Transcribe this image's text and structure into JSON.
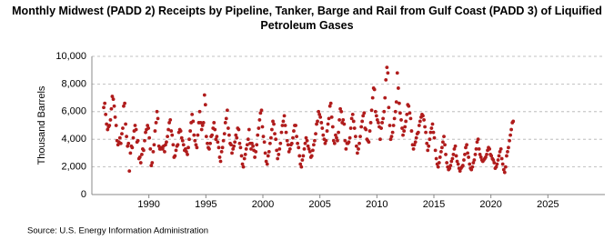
{
  "chart_data": {
    "type": "scatter",
    "title": "Monthly Midwest (PADD 2) Receipts by Pipeline, Tanker, Barge and Rail from Gulf Coast (PADD 3) of Liquified Petroleum Gases",
    "y_label": "Thousand Barrels",
    "source": "Source: U.S. Energy Information Administration",
    "color": "#b01c1c",
    "grid": true,
    "xlim": [
      1985,
      2030
    ],
    "xticks": [
      1990,
      1995,
      2000,
      2005,
      2010,
      2015,
      2020,
      2025
    ],
    "ylim": [
      0,
      10000
    ],
    "yticks": [
      0,
      {
        "value": 2000,
        "label": "2,000"
      },
      {
        "value": 4000,
        "label": "4,000"
      },
      {
        "value": 6000,
        "label": "6,000"
      },
      {
        "value": 8000,
        "label": "8,000"
      },
      {
        "value": 10000,
        "label": "10,000"
      }
    ],
    "x": [
      1986.04,
      1986.13,
      1986.21,
      1986.29,
      1986.38,
      1986.46,
      1986.54,
      1986.63,
      1986.71,
      1986.79,
      1986.88,
      1986.96,
      1987.04,
      1987.13,
      1987.21,
      1987.29,
      1987.38,
      1987.46,
      1987.54,
      1987.63,
      1987.71,
      1987.79,
      1987.88,
      1987.96,
      1988.04,
      1988.13,
      1988.21,
      1988.29,
      1988.38,
      1988.46,
      1988.54,
      1988.63,
      1988.71,
      1988.79,
      1988.88,
      1988.96,
      1989.04,
      1989.13,
      1989.21,
      1989.29,
      1989.38,
      1989.46,
      1989.54,
      1989.63,
      1989.71,
      1989.79,
      1989.88,
      1989.96,
      1990.04,
      1990.13,
      1990.21,
      1990.29,
      1990.38,
      1990.46,
      1990.54,
      1990.63,
      1990.71,
      1990.79,
      1990.88,
      1990.96,
      1991.04,
      1991.13,
      1991.21,
      1991.29,
      1991.38,
      1991.46,
      1991.54,
      1991.63,
      1991.71,
      1991.79,
      1991.88,
      1991.96,
      1992.04,
      1992.13,
      1992.21,
      1992.29,
      1992.38,
      1992.46,
      1992.54,
      1992.63,
      1992.71,
      1992.79,
      1992.88,
      1992.96,
      1993.04,
      1993.13,
      1993.21,
      1993.29,
      1993.38,
      1993.46,
      1993.54,
      1993.63,
      1993.71,
      1993.79,
      1993.88,
      1993.96,
      1994.04,
      1994.13,
      1994.21,
      1994.29,
      1994.38,
      1994.46,
      1994.54,
      1994.63,
      1994.71,
      1994.79,
      1994.88,
      1994.96,
      1995.04,
      1995.13,
      1995.21,
      1995.29,
      1995.38,
      1995.46,
      1995.54,
      1995.63,
      1995.71,
      1995.79,
      1995.88,
      1995.96,
      1996.04,
      1996.13,
      1996.21,
      1996.29,
      1996.38,
      1996.46,
      1996.54,
      1996.63,
      1996.71,
      1996.79,
      1996.88,
      1996.96,
      1997.04,
      1997.13,
      1997.21,
      1997.29,
      1997.38,
      1997.46,
      1997.54,
      1997.63,
      1997.71,
      1997.79,
      1997.88,
      1997.96,
      1998.04,
      1998.13,
      1998.21,
      1998.29,
      1998.38,
      1998.46,
      1998.54,
      1998.63,
      1998.71,
      1998.79,
      1998.88,
      1998.96,
      1999.04,
      1999.13,
      1999.21,
      1999.29,
      1999.38,
      1999.46,
      1999.54,
      1999.63,
      1999.71,
      1999.79,
      1999.88,
      1999.96,
      2000.04,
      2000.13,
      2000.21,
      2000.29,
      2000.38,
      2000.46,
      2000.54,
      2000.63,
      2000.71,
      2000.79,
      2000.88,
      2000.96,
      2001.04,
      2001.13,
      2001.21,
      2001.29,
      2001.38,
      2001.46,
      2001.54,
      2001.63,
      2001.71,
      2001.79,
      2001.88,
      2001.96,
      2002.04,
      2002.13,
      2002.21,
      2002.29,
      2002.38,
      2002.46,
      2002.54,
      2002.63,
      2002.71,
      2002.79,
      2002.88,
      2002.96,
      2003.04,
      2003.13,
      2003.21,
      2003.29,
      2003.38,
      2003.46,
      2003.54,
      2003.63,
      2003.71,
      2003.79,
      2003.88,
      2003.96,
      2004.04,
      2004.13,
      2004.21,
      2004.29,
      2004.38,
      2004.46,
      2004.54,
      2004.63,
      2004.71,
      2004.79,
      2004.88,
      2004.96,
      2005.04,
      2005.13,
      2005.21,
      2005.29,
      2005.38,
      2005.46,
      2005.54,
      2005.63,
      2005.71,
      2005.79,
      2005.88,
      2005.96,
      2006.04,
      2006.13,
      2006.21,
      2006.29,
      2006.38,
      2006.46,
      2006.54,
      2006.63,
      2006.71,
      2006.79,
      2006.88,
      2006.96,
      2007.04,
      2007.13,
      2007.21,
      2007.29,
      2007.38,
      2007.46,
      2007.54,
      2007.63,
      2007.71,
      2007.79,
      2007.88,
      2007.96,
      2008.04,
      2008.13,
      2008.21,
      2008.29,
      2008.38,
      2008.46,
      2008.54,
      2008.63,
      2008.71,
      2008.79,
      2008.88,
      2008.96,
      2009.04,
      2009.13,
      2009.21,
      2009.29,
      2009.38,
      2009.46,
      2009.54,
      2009.63,
      2009.71,
      2009.79,
      2009.88,
      2009.96,
      2010.04,
      2010.13,
      2010.21,
      2010.29,
      2010.38,
      2010.46,
      2010.54,
      2010.63,
      2010.71,
      2010.79,
      2010.88,
      2010.96,
      2011.04,
      2011.13,
      2011.21,
      2011.29,
      2011.38,
      2011.46,
      2011.54,
      2011.63,
      2011.71,
      2011.79,
      2011.88,
      2011.96,
      2012.04,
      2012.13,
      2012.21,
      2012.29,
      2012.38,
      2012.46,
      2012.54,
      2012.63,
      2012.71,
      2012.79,
      2012.88,
      2012.96,
      2013.04,
      2013.13,
      2013.21,
      2013.29,
      2013.38,
      2013.46,
      2013.54,
      2013.63,
      2013.71,
      2013.79,
      2013.88,
      2013.96,
      2014.04,
      2014.13,
      2014.21,
      2014.29,
      2014.38,
      2014.46,
      2014.54,
      2014.63,
      2014.71,
      2014.79,
      2014.88,
      2014.96,
      2015.04,
      2015.13,
      2015.21,
      2015.29,
      2015.38,
      2015.46,
      2015.54,
      2015.63,
      2015.71,
      2015.79,
      2015.88,
      2015.96,
      2016.04,
      2016.13,
      2016.21,
      2016.29,
      2016.38,
      2016.46,
      2016.54,
      2016.63,
      2016.71,
      2016.79,
      2016.88,
      2016.96,
      2017.04,
      2017.13,
      2017.21,
      2017.29,
      2017.38,
      2017.46,
      2017.54,
      2017.63,
      2017.71,
      2017.79,
      2017.88,
      2017.96,
      2018.04,
      2018.13,
      2018.21,
      2018.29,
      2018.38,
      2018.46,
      2018.54,
      2018.63,
      2018.71,
      2018.79,
      2018.88,
      2018.96,
      2019.04,
      2019.13,
      2019.21,
      2019.29,
      2019.38,
      2019.46,
      2019.54,
      2019.63,
      2019.71,
      2019.79,
      2019.88,
      2019.96,
      2020.04,
      2020.13,
      2020.21,
      2020.29,
      2020.38,
      2020.46,
      2020.54,
      2020.63,
      2020.71,
      2020.79,
      2020.88,
      2020.96,
      2021.04,
      2021.13,
      2021.21,
      2021.29,
      2021.38,
      2021.46,
      2021.54,
      2021.63,
      2021.71,
      2021.79,
      2021.88,
      2021.96
    ],
    "values": [
      6300,
      6600,
      5800,
      5100,
      4700,
      4900,
      5000,
      5400,
      6200,
      7100,
      6900,
      6400,
      5600,
      5000,
      3900,
      3600,
      3800,
      4100,
      3700,
      4400,
      4800,
      6400,
      6600,
      5100,
      4200,
      3500,
      3700,
      1700,
      3000,
      3500,
      3400,
      4100,
      4600,
      5000,
      4700,
      3800,
      3900,
      2600,
      2700,
      2300,
      2900,
      3300,
      3200,
      3900,
      4500,
      4700,
      5000,
      4800,
      4100,
      3300,
      2100,
      2300,
      3100,
      3600,
      4600,
      5200,
      6000,
      5500,
      3500,
      3300,
      3300,
      3400,
      3300,
      3500,
      3100,
      3600,
      3800,
      4200,
      4700,
      5200,
      5400,
      4600,
      4300,
      3600,
      2700,
      2800,
      3200,
      3500,
      3600,
      4500,
      4700,
      4600,
      4100,
      3900,
      3600,
      3200,
      3300,
      3100,
      2900,
      3400,
      4000,
      4600,
      5200,
      5800,
      5300,
      4300,
      3900,
      3600,
      3400,
      4300,
      5200,
      6000,
      5200,
      4700,
      5000,
      5200,
      7200,
      6500,
      4200,
      3700,
      3400,
      3300,
      3700,
      4200,
      4300,
      4800,
      5200,
      4700,
      4000,
      4200,
      3800,
      3400,
      2700,
      2400,
      3100,
      3400,
      3900,
      4400,
      5200,
      5500,
      6100,
      4800,
      4300,
      3700,
      3600,
      3000,
      3300,
      3500,
      3800,
      4300,
      4100,
      4800,
      4700,
      3700,
      3400,
      2800,
      2200,
      2000,
      2600,
      2900,
      3300,
      3600,
      4000,
      4700,
      3700,
      3300,
      3700,
      3500,
      3200,
      2700,
      3100,
      3600,
      4300,
      4800,
      5400,
      5900,
      6100,
      4900,
      4200,
      3800,
      3000,
      2400,
      2200,
      2800,
      3100,
      3700,
      4100,
      4700,
      5300,
      5100,
      4400,
      4000,
      3200,
      2600,
      2900,
      3300,
      3700,
      4500,
      5000,
      5300,
      5700,
      5000,
      4500,
      3900,
      3600,
      3100,
      3300,
      3600,
      3700,
      4100,
      4600,
      5000,
      5000,
      4200,
      3700,
      3400,
      2800,
      2200,
      2000,
      2500,
      2800,
      3300,
      3700,
      4100,
      3900,
      3500,
      3300,
      3100,
      2700,
      2800,
      3200,
      3600,
      3900,
      4400,
      5100,
      5300,
      6000,
      5800,
      5600,
      5200,
      4800,
      4300,
      4000,
      3700,
      3900,
      4600,
      5100,
      5500,
      6400,
      6600,
      5600,
      4900,
      3900,
      3700,
      4300,
      4100,
      3900,
      4500,
      5400,
      6200,
      6000,
      5200,
      5400,
      5100,
      3900,
      3300,
      3700,
      3700,
      3800,
      4100,
      4800,
      5500,
      5800,
      5300,
      4800,
      4200,
      3500,
      3000,
      3300,
      3700,
      4200,
      4900,
      5300,
      5700,
      5900,
      4800,
      4700,
      4000,
      3900,
      3800,
      4600,
      5200,
      6100,
      7000,
      7700,
      7600,
      6000,
      5700,
      5400,
      5200,
      4900,
      4000,
      4800,
      5200,
      5500,
      6000,
      7000,
      8300,
      9200,
      8800,
      6300,
      5000,
      4000,
      4200,
      4500,
      5000,
      5500,
      6000,
      6700,
      8800,
      7700,
      6600,
      5900,
      5400,
      4800,
      4300,
      4600,
      4900,
      5300,
      5800,
      6500,
      6400,
      5900,
      5500,
      4600,
      3600,
      3300,
      3600,
      3800,
      4100,
      4400,
      4500,
      5000,
      5300,
      5600,
      5800,
      5700,
      5400,
      4900,
      4500,
      3700,
      3200,
      3500,
      4000,
      4500,
      4800,
      5100,
      4500,
      4100,
      3200,
      2600,
      2200,
      2000,
      2300,
      2700,
      3100,
      3400,
      3800,
      4200,
      3600,
      2900,
      2300,
      2000,
      1800,
      1900,
      2100,
      2400,
      2600,
      2900,
      3300,
      3500,
      2800,
      2400,
      2200,
      1900,
      1700,
      1900,
      2000,
      2100,
      2500,
      2900,
      3400,
      3600,
      3000,
      2700,
      2200,
      1900,
      1800,
      2000,
      2300,
      2500,
      2900,
      3300,
      3800,
      4000,
      3300,
      2900,
      2700,
      2500,
      2400,
      2500,
      2600,
      2700,
      2900,
      3200,
      3400,
      3300,
      2900,
      2800,
      2600,
      2500,
      2300,
      1900,
      2000,
      2200,
      2500,
      2800,
      3100,
      3300,
      2600,
      2200,
      1800,
      1600,
      2000,
      2800,
      3100,
      3400,
      3900,
      4300,
      4700,
      5200,
      5300
    ]
  }
}
